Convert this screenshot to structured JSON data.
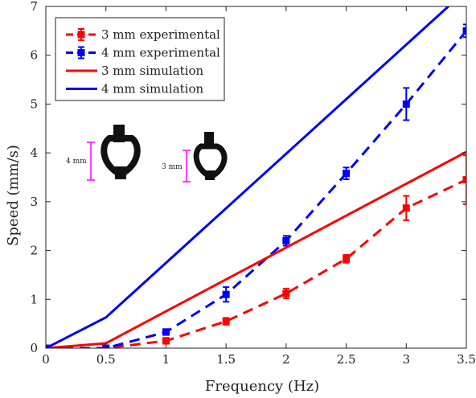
{
  "chart_data": {
    "type": "line",
    "xlabel": "Frequency (Hz)",
    "ylabel": "Speed (mm/s)",
    "xlim": [
      0,
      3.5
    ],
    "ylim": [
      0,
      7
    ],
    "xticks": [
      "0",
      "0.5",
      "1",
      "1.5",
      "2",
      "2.5",
      "3",
      "3.5"
    ],
    "yticks": [
      "0",
      "1",
      "2",
      "3",
      "4",
      "5",
      "6",
      "7"
    ],
    "grid": false,
    "legend_position": "top-left",
    "series": [
      {
        "name": "3 mm experimental",
        "style": "dashed-errorbar",
        "color": "#ff0000",
        "x": [
          0,
          0.5,
          1,
          1.5,
          2,
          2.5,
          3,
          3.5
        ],
        "y": [
          0,
          0,
          0.15,
          0.55,
          1.12,
          1.83,
          2.87,
          3.45
        ],
        "err": [
          0.02,
          0.02,
          0.06,
          0.07,
          0.1,
          0.08,
          0.25,
          0.5
        ]
      },
      {
        "name": "4 mm experimental",
        "style": "dashed-errorbar",
        "color": "#0000ff",
        "x": [
          0,
          0.5,
          1,
          1.5,
          2,
          2.5,
          3,
          3.5
        ],
        "y": [
          0,
          0,
          0.33,
          1.1,
          2.2,
          3.58,
          5.0,
          6.5
        ],
        "err": [
          0.02,
          0.03,
          0.06,
          0.15,
          0.1,
          0.12,
          0.33,
          0.13
        ]
      },
      {
        "name": "3 mm simulation",
        "style": "solid",
        "color": "#ff0000",
        "x": [
          0,
          0.5,
          3.5
        ],
        "y": [
          0,
          0.1,
          4.02
        ]
      },
      {
        "name": "4 mm simulation",
        "style": "solid",
        "color": "#0000ff",
        "x": [
          0,
          0.5,
          3.35
        ],
        "y": [
          0,
          0.63,
          7.0
        ]
      }
    ],
    "annotations": [
      {
        "text": "4 mm"
      },
      {
        "text": "3 mm"
      }
    ]
  }
}
